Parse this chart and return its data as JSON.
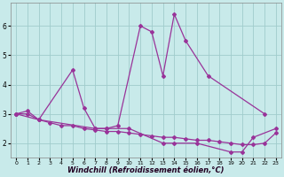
{
  "series1_x": [
    0,
    1,
    2,
    5,
    6,
    7,
    8,
    9,
    11,
    12,
    13,
    14,
    15,
    17,
    22
  ],
  "series1_y": [
    3.0,
    3.1,
    2.8,
    4.5,
    3.2,
    2.5,
    2.5,
    2.6,
    6.0,
    5.8,
    4.3,
    6.4,
    5.5,
    4.3,
    3.0
  ],
  "series2_x": [
    0,
    2,
    7,
    8,
    10,
    13,
    14,
    16,
    19,
    20,
    21,
    23
  ],
  "series2_y": [
    3.0,
    2.8,
    2.5,
    2.5,
    2.5,
    2.0,
    2.0,
    2.0,
    1.7,
    1.7,
    2.2,
    2.5
  ],
  "series3_x": [
    0,
    1,
    2,
    3,
    4,
    5,
    6,
    7,
    8,
    9,
    10,
    11,
    12,
    13,
    14,
    15,
    16,
    17,
    18,
    19,
    20,
    21,
    22,
    23
  ],
  "series3_y": [
    3.0,
    3.0,
    2.8,
    2.7,
    2.6,
    2.6,
    2.5,
    2.45,
    2.4,
    2.4,
    2.35,
    2.3,
    2.25,
    2.2,
    2.2,
    2.15,
    2.1,
    2.1,
    2.05,
    2.0,
    1.95,
    1.95,
    2.0,
    2.35
  ],
  "line_color": "#993399",
  "bg_color": "#c8eaea",
  "grid_color": "#a0cccc",
  "xlabel": "Windchill (Refroidissement éolien,°C)",
  "ylim": [
    1.5,
    6.8
  ],
  "xlim": [
    -0.5,
    23.5
  ],
  "yticks": [
    2,
    3,
    4,
    5,
    6
  ],
  "xticks": [
    0,
    1,
    2,
    3,
    4,
    5,
    6,
    7,
    8,
    9,
    10,
    11,
    12,
    13,
    14,
    15,
    16,
    17,
    18,
    19,
    20,
    21,
    22,
    23
  ],
  "xlabel_fontsize": 6.0,
  "tick_fontsize": 5.5
}
